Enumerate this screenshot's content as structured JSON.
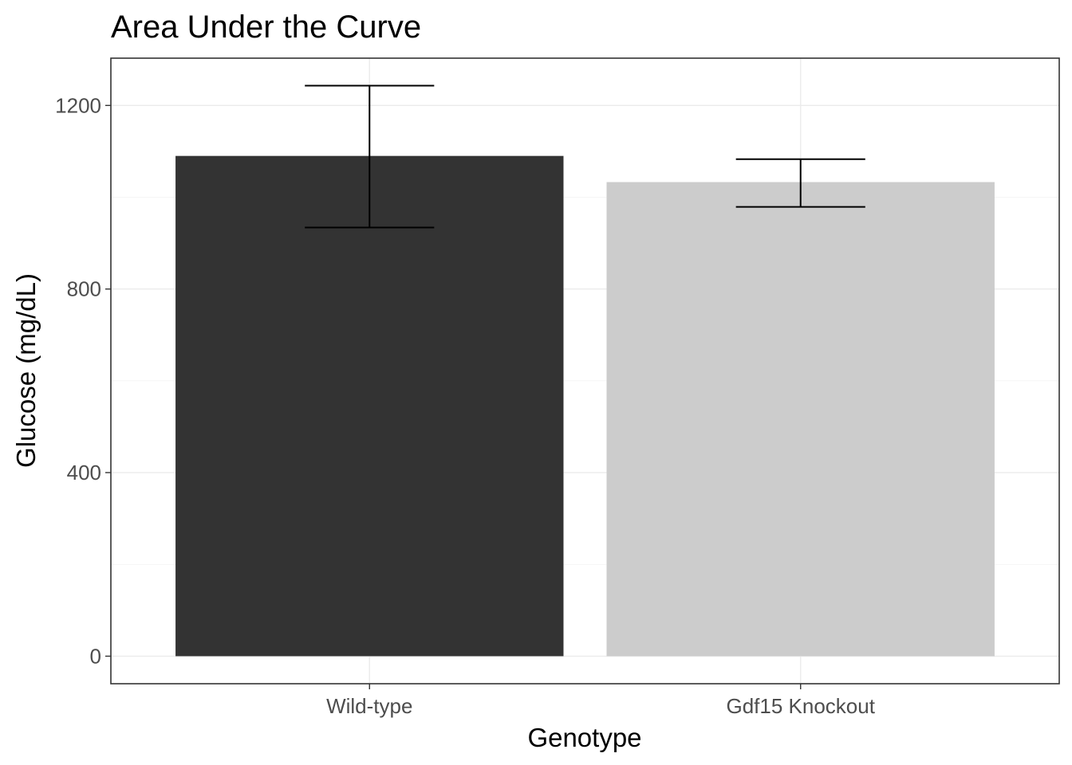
{
  "chart_data": {
    "type": "bar",
    "title": "Area Under the Curve",
    "xlabel": "Genotype",
    "ylabel": "Glucose (mg/dL)",
    "categories": [
      "Wild-type",
      "Gdf15 Knockout"
    ],
    "values": [
      1090,
      1033
    ],
    "error_upper": [
      1243,
      1083
    ],
    "error_lower": [
      934,
      979
    ],
    "colors": [
      "#333333",
      "#cccccc"
    ],
    "ylim": [
      -60,
      1303
    ],
    "yticks": [
      0,
      400,
      800,
      1200
    ],
    "ytick_labels": [
      "0",
      "400",
      "800",
      "1200"
    ],
    "grid": true,
    "legend": "none"
  }
}
